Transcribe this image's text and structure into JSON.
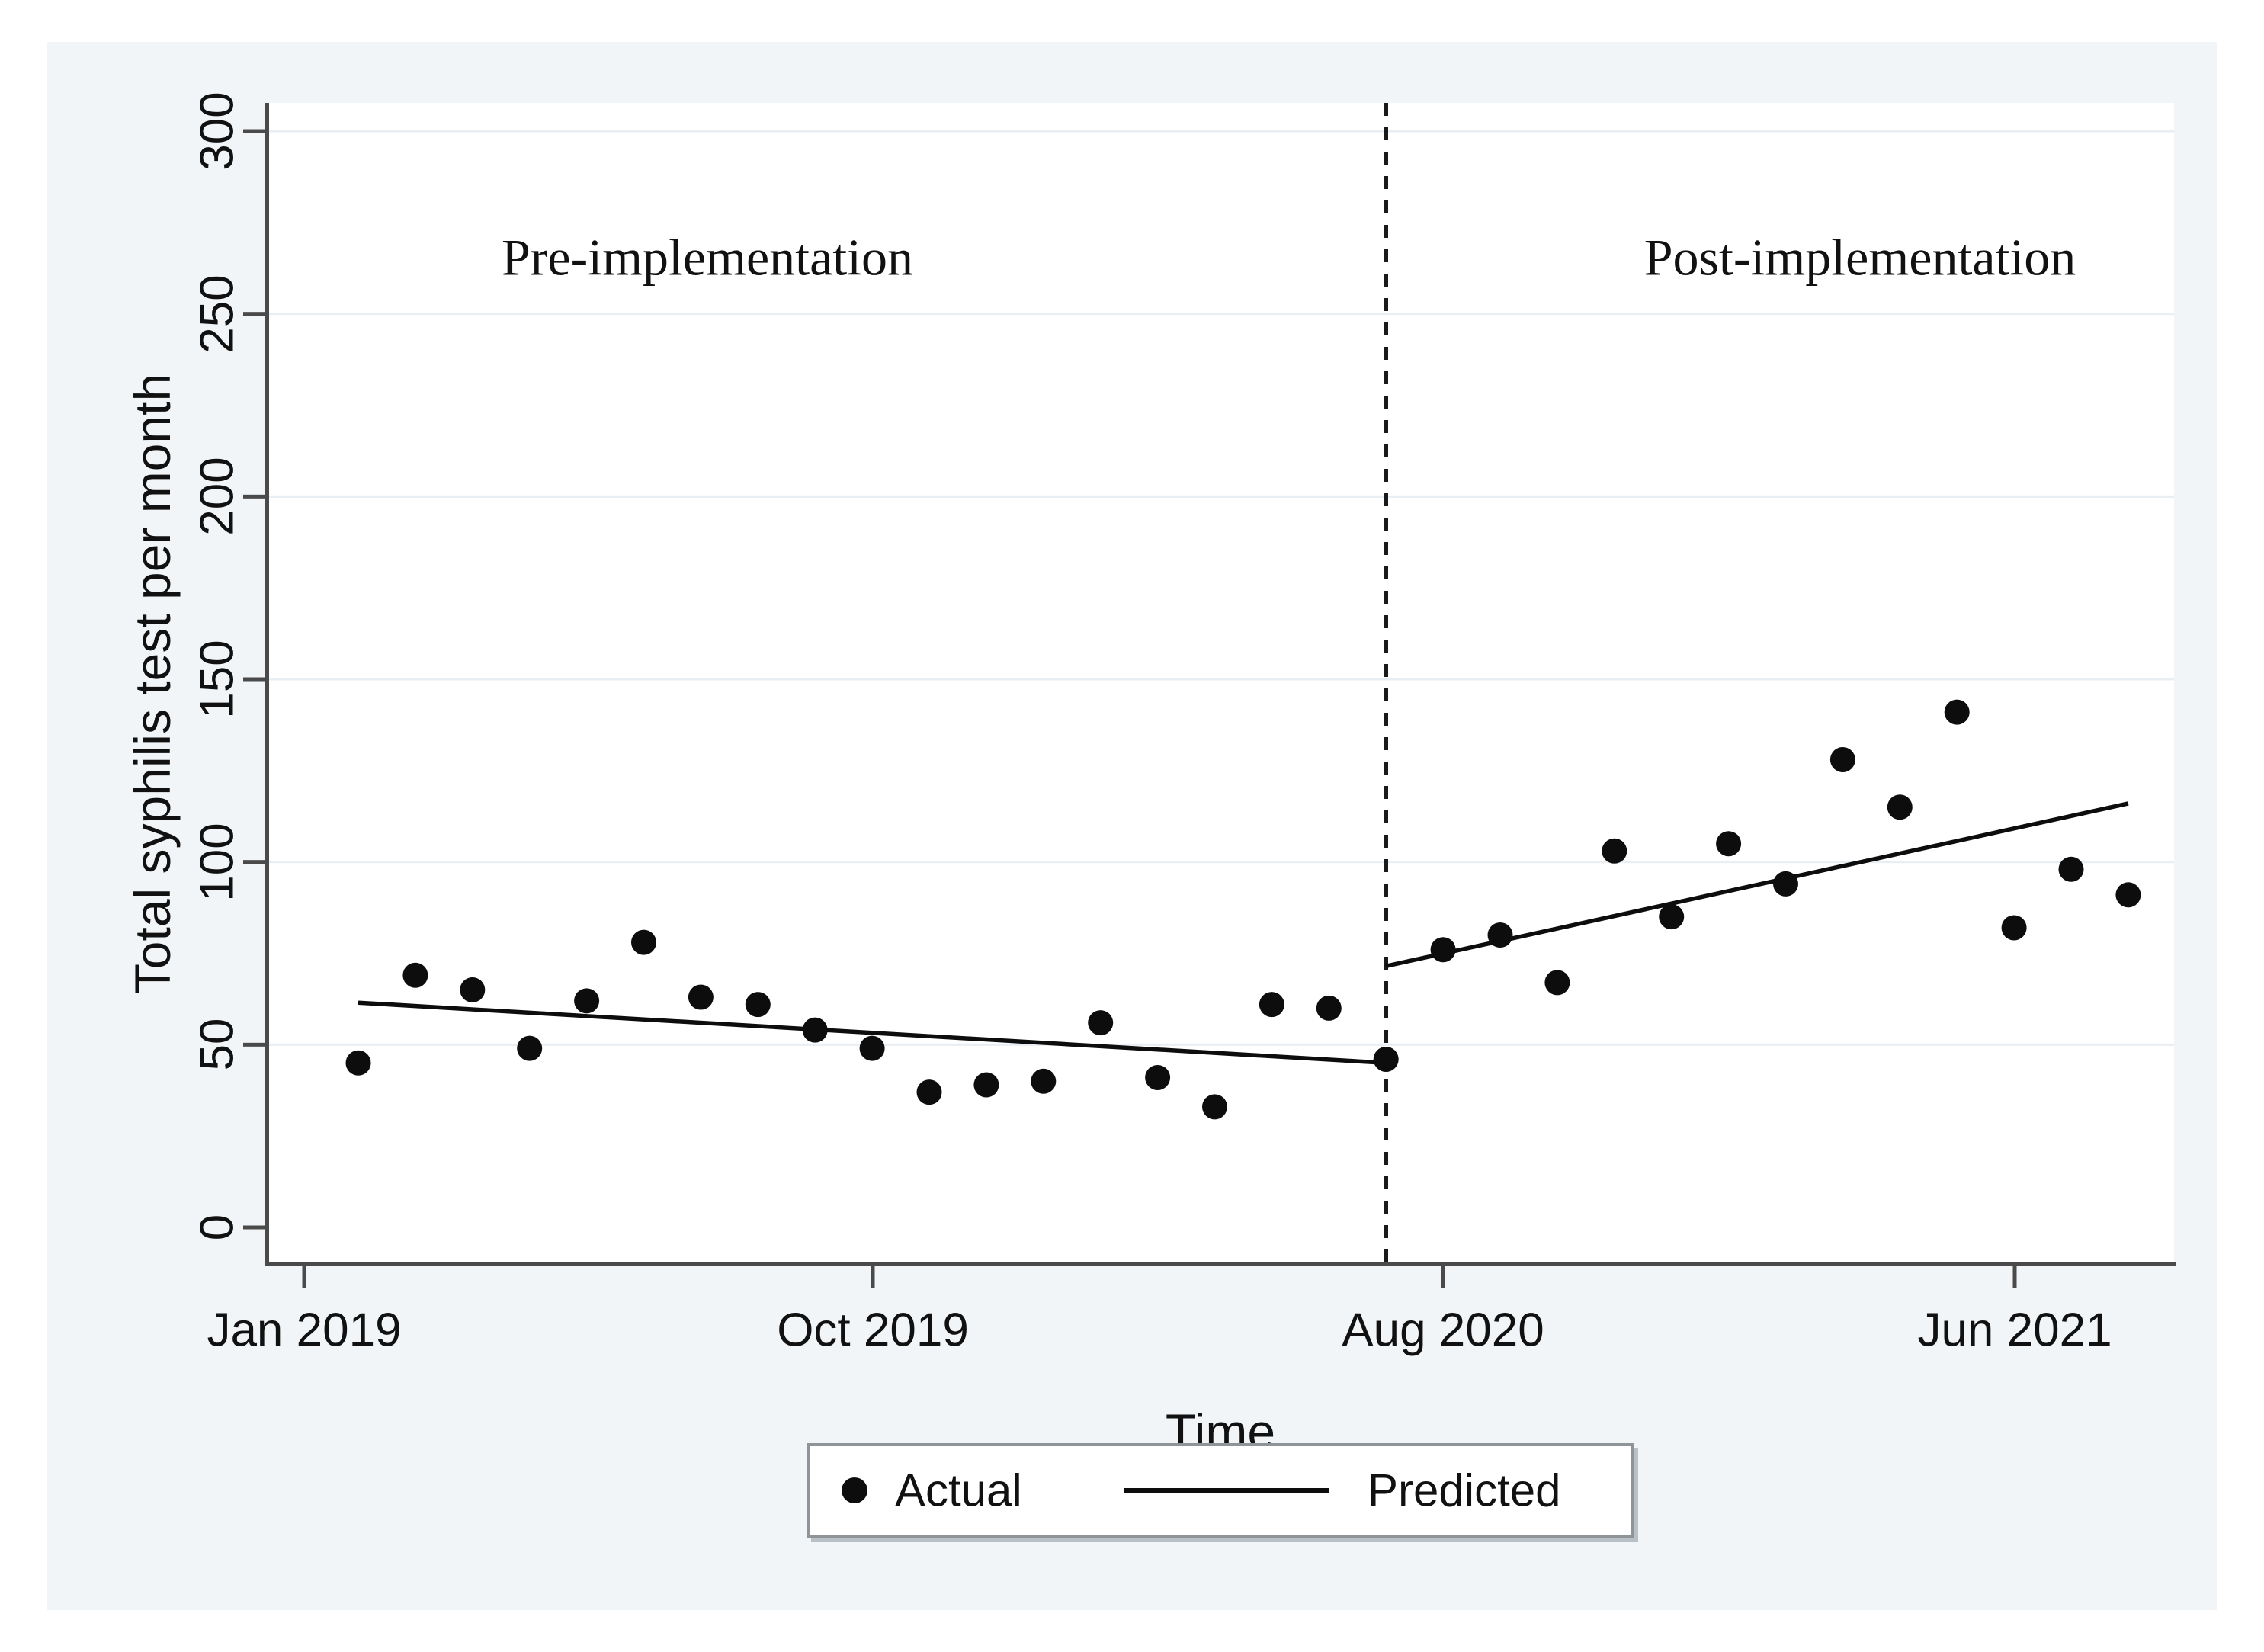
{
  "figure": {
    "background": "#f2f5f7",
    "plot_background": "#ffffff",
    "point_color": "#0d0d0d",
    "line_color": "#1a1a1a",
    "axis_color": "#4a4a4a",
    "grid_color": "#e9eef3",
    "text_color": "#111111"
  },
  "chart_data": {
    "type": "scatter",
    "title": "",
    "xlabel": "Time",
    "ylabel": "Total syphilis test per month",
    "ylim": [
      0,
      310
    ],
    "grid": "horizontal-light",
    "legend_position": "bottom-center",
    "x_tick_labels": [
      "Jan 2019",
      "Oct 2019",
      "Aug 2020",
      "Jun 2021"
    ],
    "y_tick_values": [
      0,
      50,
      100,
      150,
      200,
      250,
      300
    ],
    "annotations": {
      "pre": "Pre-implementation",
      "post": "Post-implementation"
    },
    "legend": {
      "actual": "Actual",
      "predicted": "Predicted"
    },
    "intervention_month": "Aug 2020",
    "months": [
      "Jan 2019",
      "Feb 2019",
      "Mar 2019",
      "Apr 2019",
      "May 2019",
      "Jun 2019",
      "Jul 2019",
      "Aug 2019",
      "Sep 2019",
      "Oct 2019",
      "Nov 2019",
      "Dec 2019",
      "Jan 2020",
      "Feb 2020",
      "Mar 2020",
      "Apr 2020",
      "May 2020",
      "Jun 2020",
      "Jul 2020",
      "Aug 2020",
      "Sep 2020",
      "Oct 2020",
      "Nov 2020",
      "Dec 2020",
      "Jan 2021",
      "Feb 2021",
      "Mar 2021",
      "Apr 2021",
      "May 2021",
      "Jun 2021",
      "Jul 2021",
      "Aug 2021"
    ],
    "actual": [
      45,
      69,
      65,
      49,
      62,
      78,
      63,
      61,
      54,
      49,
      37,
      39,
      40,
      56,
      41,
      33,
      61,
      60,
      46,
      76,
      80,
      67,
      103,
      85,
      105,
      94,
      128,
      115,
      141,
      82,
      98,
      91
    ],
    "pre_period_count": 19,
    "predicted_pre": {
      "from_month": "Jan 2019",
      "to_month": "Aug 2020",
      "start_value": 61.5,
      "end_value": 45
    },
    "predicted_post": {
      "from_month": "Aug 2020",
      "to_month": "Aug 2021",
      "start_value": 71.5,
      "end_value": 116
    }
  }
}
